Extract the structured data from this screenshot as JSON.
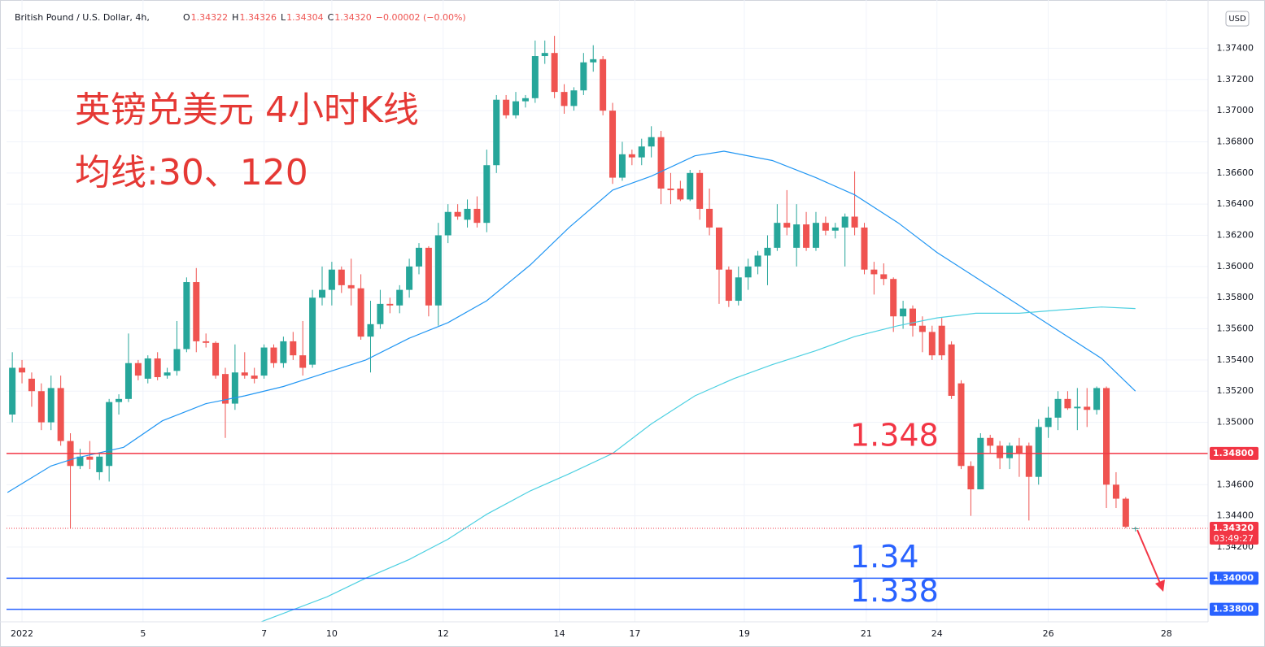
{
  "chart_data": {
    "type": "candlestick",
    "symbol": "British Pound / U.S. Dollar, 4h,",
    "ohlc_header": [
      {
        "label": "O",
        "value": "1.34322"
      },
      {
        "label": "H",
        "value": "1.34326"
      },
      {
        "label": "L",
        "value": "1.34304"
      },
      {
        "label": "C",
        "value": "1.34320"
      }
    ],
    "change": "−0.00002 (−0.00%)",
    "currency": "USD",
    "annotations": [
      "英镑兑美元 4小时K线",
      "均线:30、120"
    ],
    "up_color": "#26a69a",
    "down_color": "#ef5350",
    "ylim": [
      1.3372,
      1.3771
    ],
    "xlim": [
      -0.6,
      123.5
    ],
    "grid": true,
    "yticks": [
      {
        "value": 1.342,
        "label": "1.34200"
      },
      {
        "value": 1.344,
        "label": "1.34400"
      },
      {
        "value": 1.346,
        "label": "1.34600"
      },
      {
        "value": 1.348,
        "label": "1.34800"
      },
      {
        "value": 1.35,
        "label": "1.35000"
      },
      {
        "value": 1.352,
        "label": "1.35200"
      },
      {
        "value": 1.354,
        "label": "1.35400"
      },
      {
        "value": 1.356,
        "label": "1.35600"
      },
      {
        "value": 1.358,
        "label": "1.35800"
      },
      {
        "value": 1.36,
        "label": "1.36000"
      },
      {
        "value": 1.362,
        "label": "1.36200"
      },
      {
        "value": 1.364,
        "label": "1.36400"
      },
      {
        "value": 1.366,
        "label": "1.36600"
      },
      {
        "value": 1.368,
        "label": "1.36800"
      },
      {
        "value": 1.37,
        "label": "1.37000"
      },
      {
        "value": 1.372,
        "label": "1.37200"
      },
      {
        "value": 1.374,
        "label": "1.37400"
      }
    ],
    "xticks": [
      {
        "value": 1,
        "label": "2022"
      },
      {
        "value": 13.5,
        "label": "5"
      },
      {
        "value": 26,
        "label": "7"
      },
      {
        "value": 33,
        "label": "10"
      },
      {
        "value": 44.5,
        "label": "12"
      },
      {
        "value": 56.5,
        "label": "14"
      },
      {
        "value": 64.3,
        "label": "17"
      },
      {
        "value": 75.6,
        "label": "19"
      },
      {
        "value": 88.2,
        "label": "21"
      },
      {
        "value": 95.5,
        "label": "24"
      },
      {
        "value": 107,
        "label": "26"
      },
      {
        "value": 119.2,
        "label": "28"
      }
    ],
    "candles": [
      [
        1.3505,
        1.3545,
        1.35,
        1.3535
      ],
      [
        1.3535,
        1.354,
        1.3525,
        1.3532
      ],
      [
        1.3528,
        1.3532,
        1.351,
        1.352
      ],
      [
        1.352,
        1.3525,
        1.3495,
        1.35
      ],
      [
        1.35,
        1.353,
        1.3495,
        1.3522
      ],
      [
        1.3522,
        1.353,
        1.3485,
        1.3488
      ],
      [
        1.3488,
        1.3493,
        1.3432,
        1.3472
      ],
      [
        1.3472,
        1.3483,
        1.347,
        1.3478
      ],
      [
        1.3478,
        1.3488,
        1.347,
        1.3476
      ],
      [
        1.3468,
        1.348,
        1.3463,
        1.3478
      ],
      [
        1.3472,
        1.3515,
        1.3462,
        1.3513
      ],
      [
        1.3513,
        1.3518,
        1.3505,
        1.3515
      ],
      [
        1.3515,
        1.3557,
        1.3513,
        1.3538
      ],
      [
        1.3538,
        1.354,
        1.3527,
        1.353
      ],
      [
        1.3528,
        1.3543,
        1.3525,
        1.3541
      ],
      [
        1.3541,
        1.3545,
        1.3527,
        1.3529
      ],
      [
        1.353,
        1.3535,
        1.3528,
        1.3532
      ],
      [
        1.3533,
        1.3565,
        1.353,
        1.3547
      ],
      [
        1.3547,
        1.3593,
        1.3545,
        1.359
      ],
      [
        1.359,
        1.3599,
        1.3545,
        1.3552
      ],
      [
        1.3552,
        1.3557,
        1.3548,
        1.3551
      ],
      [
        1.3551,
        1.3552,
        1.3528,
        1.353
      ],
      [
        1.3531,
        1.3535,
        1.349,
        1.3512
      ],
      [
        1.3512,
        1.355,
        1.3508,
        1.3532
      ],
      [
        1.3532,
        1.3545,
        1.3528,
        1.353
      ],
      [
        1.353,
        1.3535,
        1.3525,
        1.3528
      ],
      [
        1.353,
        1.355,
        1.3528,
        1.3548
      ],
      [
        1.3548,
        1.355,
        1.3535,
        1.3538
      ],
      [
        1.3538,
        1.3555,
        1.3535,
        1.3552
      ],
      [
        1.3552,
        1.3558,
        1.354,
        1.3543
      ],
      [
        1.3543,
        1.3565,
        1.353,
        1.3535
      ],
      [
        1.3537,
        1.3585,
        1.3535,
        1.358
      ],
      [
        1.358,
        1.36,
        1.3575,
        1.3585
      ],
      [
        1.3585,
        1.3603,
        1.3575,
        1.3598
      ],
      [
        1.3598,
        1.36,
        1.3583,
        1.3588
      ],
      [
        1.3588,
        1.3605,
        1.3575,
        1.3586
      ],
      [
        1.3586,
        1.3595,
        1.3553,
        1.3555
      ],
      [
        1.3555,
        1.3578,
        1.3532,
        1.3563
      ],
      [
        1.3563,
        1.3585,
        1.356,
        1.3576
      ],
      [
        1.3576,
        1.358,
        1.357,
        1.3575
      ],
      [
        1.3575,
        1.3588,
        1.357,
        1.3585
      ],
      [
        1.3585,
        1.3605,
        1.358,
        1.36
      ],
      [
        1.36,
        1.3615,
        1.3595,
        1.3612
      ],
      [
        1.3612,
        1.3613,
        1.3568,
        1.3575
      ],
      [
        1.3575,
        1.3628,
        1.3562,
        1.362
      ],
      [
        1.362,
        1.364,
        1.3615,
        1.3635
      ],
      [
        1.3635,
        1.364,
        1.363,
        1.3632
      ],
      [
        1.363,
        1.3643,
        1.3625,
        1.3637
      ],
      [
        1.3637,
        1.3645,
        1.3625,
        1.3628
      ],
      [
        1.3628,
        1.3675,
        1.3622,
        1.3665
      ],
      [
        1.3665,
        1.371,
        1.366,
        1.3707
      ],
      [
        1.3707,
        1.371,
        1.3695,
        1.3697
      ],
      [
        1.3697,
        1.3712,
        1.3695,
        1.3706
      ],
      [
        1.3706,
        1.371,
        1.3702,
        1.3708
      ],
      [
        1.3708,
        1.3745,
        1.3705,
        1.3735
      ],
      [
        1.3735,
        1.3745,
        1.373,
        1.3737
      ],
      [
        1.3737,
        1.3748,
        1.3708,
        1.3712
      ],
      [
        1.3712,
        1.3717,
        1.3698,
        1.3703
      ],
      [
        1.3703,
        1.3715,
        1.37,
        1.3713
      ],
      [
        1.3713,
        1.3737,
        1.371,
        1.3731
      ],
      [
        1.3731,
        1.3742,
        1.3725,
        1.3733
      ],
      [
        1.3733,
        1.3735,
        1.3697,
        1.37
      ],
      [
        1.37,
        1.3705,
        1.3653,
        1.3657
      ],
      [
        1.3657,
        1.368,
        1.3655,
        1.3672
      ],
      [
        1.3672,
        1.3675,
        1.3665,
        1.367
      ],
      [
        1.367,
        1.3682,
        1.3665,
        1.3677
      ],
      [
        1.3677,
        1.369,
        1.367,
        1.3683
      ],
      [
        1.3683,
        1.3687,
        1.364,
        1.365
      ],
      [
        1.365,
        1.366,
        1.364,
        1.3649
      ],
      [
        1.365,
        1.3655,
        1.3642,
        1.3643
      ],
      [
        1.3643,
        1.3662,
        1.3642,
        1.366
      ],
      [
        1.366,
        1.3662,
        1.363,
        1.3637
      ],
      [
        1.3637,
        1.365,
        1.362,
        1.3625
      ],
      [
        1.3625,
        1.3625,
        1.3576,
        1.3598
      ],
      [
        1.3598,
        1.36,
        1.3574,
        1.3578
      ],
      [
        1.3578,
        1.36,
        1.3575,
        1.3593
      ],
      [
        1.3593,
        1.3605,
        1.3585,
        1.36
      ],
      [
        1.36,
        1.361,
        1.3595,
        1.3607
      ],
      [
        1.3607,
        1.362,
        1.3588,
        1.3612
      ],
      [
        1.3612,
        1.364,
        1.361,
        1.3628
      ],
      [
        1.3628,
        1.3649,
        1.362,
        1.3625
      ],
      [
        1.3612,
        1.364,
        1.36,
        1.3627
      ],
      [
        1.3627,
        1.3635,
        1.361,
        1.3612
      ],
      [
        1.3612,
        1.3635,
        1.361,
        1.3628
      ],
      [
        1.3628,
        1.3632,
        1.362,
        1.3623
      ],
      [
        1.3623,
        1.3628,
        1.3618,
        1.3625
      ],
      [
        1.3625,
        1.3634,
        1.36,
        1.3632
      ],
      [
        1.3632,
        1.3661,
        1.362,
        1.3625
      ],
      [
        1.3625,
        1.3628,
        1.3595,
        1.3598
      ],
      [
        1.3598,
        1.3603,
        1.3582,
        1.3595
      ],
      [
        1.3595,
        1.3602,
        1.3588,
        1.3592
      ],
      [
        1.3592,
        1.3593,
        1.3558,
        1.3568
      ],
      [
        1.3568,
        1.3578,
        1.356,
        1.3573
      ],
      [
        1.3573,
        1.3575,
        1.3555,
        1.3562
      ],
      [
        1.3562,
        1.3568,
        1.3545,
        1.3558
      ],
      [
        1.3558,
        1.3562,
        1.354,
        1.3543
      ],
      [
        1.3562,
        1.3567,
        1.354,
        1.3543
      ],
      [
        1.355,
        1.3552,
        1.3515,
        1.3517
      ],
      [
        1.3525,
        1.3527,
        1.347,
        1.3472
      ],
      [
        1.3472,
        1.3475,
        1.344,
        1.3457
      ],
      [
        1.3457,
        1.3493,
        1.3457,
        1.349
      ],
      [
        1.349,
        1.3492,
        1.348,
        1.3485
      ],
      [
        1.3485,
        1.3488,
        1.347,
        1.3477
      ],
      [
        1.3477,
        1.3487,
        1.347,
        1.3485
      ],
      [
        1.3485,
        1.349,
        1.3465,
        1.348
      ],
      [
        1.3485,
        1.3487,
        1.3437,
        1.3465
      ],
      [
        1.3465,
        1.3502,
        1.346,
        1.3497
      ],
      [
        1.3497,
        1.351,
        1.349,
        1.3503
      ],
      [
        1.3503,
        1.352,
        1.3495,
        1.3515
      ],
      [
        1.3515,
        1.352,
        1.3508,
        1.3509
      ],
      [
        1.3509,
        1.3522,
        1.3495,
        1.351
      ],
      [
        1.351,
        1.3522,
        1.3497,
        1.3508
      ],
      [
        1.3508,
        1.3523,
        1.3505,
        1.3522
      ],
      [
        1.3522,
        1.3523,
        1.3445,
        1.346
      ],
      [
        1.346,
        1.3468,
        1.3445,
        1.3451
      ],
      [
        1.3451,
        1.3452,
        1.3432,
        1.3433
      ],
      [
        1.3432,
        1.3433,
        1.343,
        1.3432
      ]
    ],
    "series": [
      {
        "color": "#2196f3",
        "x": [
          -0.5,
          4,
          6.5,
          11.5,
          15.5,
          20,
          24,
          28,
          32.5,
          36.5,
          41,
          45,
          49,
          53.5,
          57.5,
          62,
          66,
          70.5,
          73.5,
          78.5,
          83,
          87,
          91.5,
          95.5,
          99.5,
          104,
          108,
          112.5,
          116
        ],
        "values": [
          1.3455,
          1.3472,
          1.3477,
          1.3484,
          1.3501,
          1.3512,
          1.3517,
          1.3523,
          1.3532,
          1.354,
          1.3554,
          1.3564,
          1.3578,
          1.3601,
          1.3625,
          1.3649,
          1.3658,
          1.3671,
          1.3674,
          1.3668,
          1.3657,
          1.3646,
          1.3628,
          1.3609,
          1.3593,
          1.3575,
          1.3559,
          1.3541,
          1.352
        ]
      },
      {
        "color": "#4dd0e1",
        "x": [
          25.7,
          32.5,
          36.5,
          41,
          45,
          49,
          53.5,
          57.5,
          62,
          66,
          70.5,
          74.5,
          78.5,
          83,
          87,
          91.5,
          95.5,
          99.5,
          104,
          108,
          112.5,
          116
        ],
        "values": [
          1.3372,
          1.3388,
          1.34,
          1.3412,
          1.3425,
          1.3441,
          1.3456,
          1.3467,
          1.348,
          1.3499,
          1.3517,
          1.3528,
          1.3537,
          1.3546,
          1.3555,
          1.3562,
          1.3567,
          1.357,
          1.357,
          1.3572,
          1.3574,
          1.3573
        ]
      }
    ],
    "levels": [
      {
        "value": 1.348,
        "axis_label": "1.34800",
        "color": "#f23645"
      },
      {
        "value": 1.34,
        "axis_label": "1.34000",
        "color": "#2962ff"
      },
      {
        "value": 1.338,
        "axis_label": "1.33800",
        "color": "#2962ff"
      }
    ],
    "last_price": {
      "value": 1.3432,
      "label": "1.34320",
      "countdown": "03:49:27",
      "color": "#f23645"
    }
  }
}
